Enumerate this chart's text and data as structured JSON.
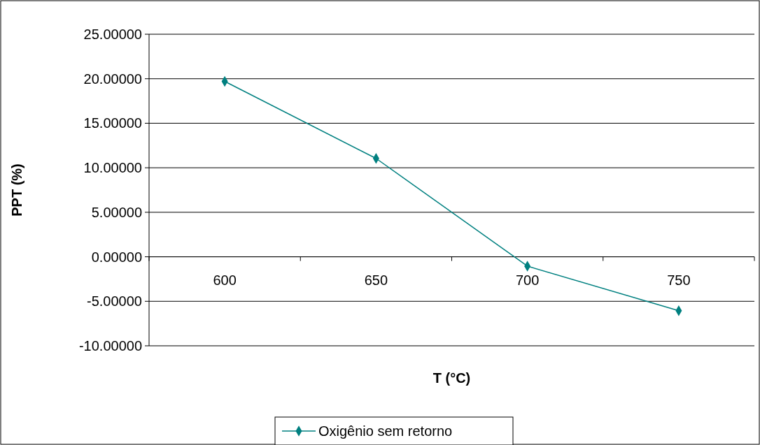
{
  "chart_data": {
    "type": "line",
    "xlabel": "T (°C)",
    "ylabel": "PPT (%)",
    "categories": [
      "600",
      "650",
      "700",
      "750"
    ],
    "series": [
      {
        "name": "Oxigênio sem retorno",
        "color": "#008080",
        "values": [
          19.7,
          11.05,
          -1.05,
          -6.05
        ]
      }
    ],
    "ylim": [
      -10,
      25
    ],
    "yticks": [
      {
        "value": -10,
        "label": "-10.00000"
      },
      {
        "value": -5,
        "label": "-5.00000"
      },
      {
        "value": 0,
        "label": "0.00000"
      },
      {
        "value": 5,
        "label": "5.00000"
      },
      {
        "value": 10,
        "label": "10.00000"
      },
      {
        "value": 15,
        "label": "15.00000"
      },
      {
        "value": 20,
        "label": "20.00000"
      },
      {
        "value": 25,
        "label": "25.00000"
      }
    ],
    "grid": "y",
    "legend": "bottom",
    "marker": "diamond",
    "line_style": "solid"
  }
}
